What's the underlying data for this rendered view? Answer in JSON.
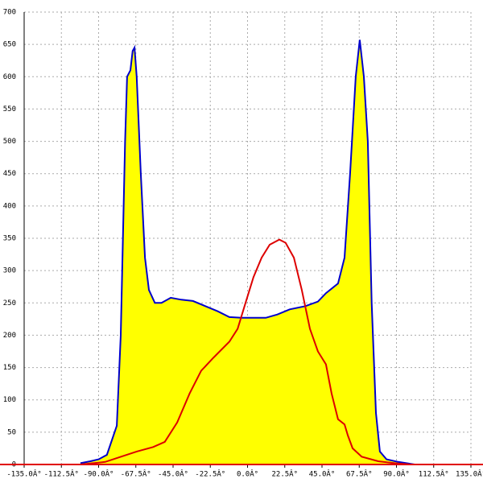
{
  "chart_data": {
    "type": "line",
    "xlim": [
      -135,
      135
    ],
    "ylim": [
      0,
      700
    ],
    "xticks": [
      {
        "value": -135,
        "label": "-135.0Â°"
      },
      {
        "value": -112.5,
        "label": "-112.5Â°"
      },
      {
        "value": -90,
        "label": "-90.0Â°"
      },
      {
        "value": -67.5,
        "label": "-67.5Â°"
      },
      {
        "value": -45,
        "label": "-45.0Â°"
      },
      {
        "value": -22.5,
        "label": "-22.5Â°"
      },
      {
        "value": 0,
        "label": "0.0Â°"
      },
      {
        "value": 22.5,
        "label": "22.5Â°"
      },
      {
        "value": 45,
        "label": "45.0Â°"
      },
      {
        "value": 67.5,
        "label": "67.5Â°"
      },
      {
        "value": 90,
        "label": "90.0Â°"
      },
      {
        "value": 112.5,
        "label": "112.5Â°"
      },
      {
        "value": 135,
        "label": "135.0Â°"
      }
    ],
    "yticks": [
      0,
      50,
      100,
      150,
      200,
      250,
      300,
      350,
      400,
      450,
      500,
      550,
      600,
      650,
      700
    ],
    "grid": true,
    "axis_color": "#e00000",
    "series": [
      {
        "kind": "area",
        "color": "#0000cc",
        "fill": "#ffff00",
        "x": [
          -101,
          -95,
          -90,
          -85,
          -79,
          -76.6,
          -74,
          -72.8,
          -70.8,
          -69.4,
          -68.3,
          -67,
          -64.5,
          -62,
          -59.6,
          -56,
          -52,
          -46.4,
          -40,
          -33,
          -25.5,
          -18,
          -11,
          -3.6,
          11,
          18,
          25.5,
          35,
          42.5,
          47.4,
          54.7,
          58.6,
          62,
          65.4,
          67.8,
          70.3,
          72.7,
          75,
          77.6,
          80,
          84,
          91,
          98.5,
          101
        ],
        "values": [
          2,
          5,
          8,
          15,
          60,
          200,
          500,
          600,
          610,
          640,
          645,
          600,
          450,
          320,
          270,
          250,
          250,
          258,
          255,
          253,
          245,
          237,
          228,
          227,
          227,
          232,
          240,
          245,
          252,
          265,
          280,
          320,
          450,
          600,
          657,
          600,
          500,
          250,
          80,
          20,
          8,
          4,
          1,
          0
        ]
      },
      {
        "kind": "line",
        "color": "#dd0000",
        "x": [
          -101,
          -86,
          -76.6,
          -67,
          -57,
          -50,
          -42.5,
          -35,
          -28,
          -20.7,
          -11,
          -6,
          -1.2,
          3.6,
          8.5,
          13.4,
          19.2,
          23,
          28,
          32.8,
          37.7,
          42.5,
          47.4,
          50.8,
          54.7,
          58.6,
          60.6,
          63.5,
          69,
          79,
          88.8,
          98.5
        ],
        "values": [
          0,
          4,
          12,
          20,
          27,
          35,
          65,
          110,
          145,
          165,
          190,
          210,
          250,
          290,
          320,
          340,
          348,
          343,
          320,
          270,
          210,
          175,
          155,
          110,
          70,
          62,
          45,
          25,
          12,
          5,
          2,
          0
        ]
      }
    ]
  }
}
